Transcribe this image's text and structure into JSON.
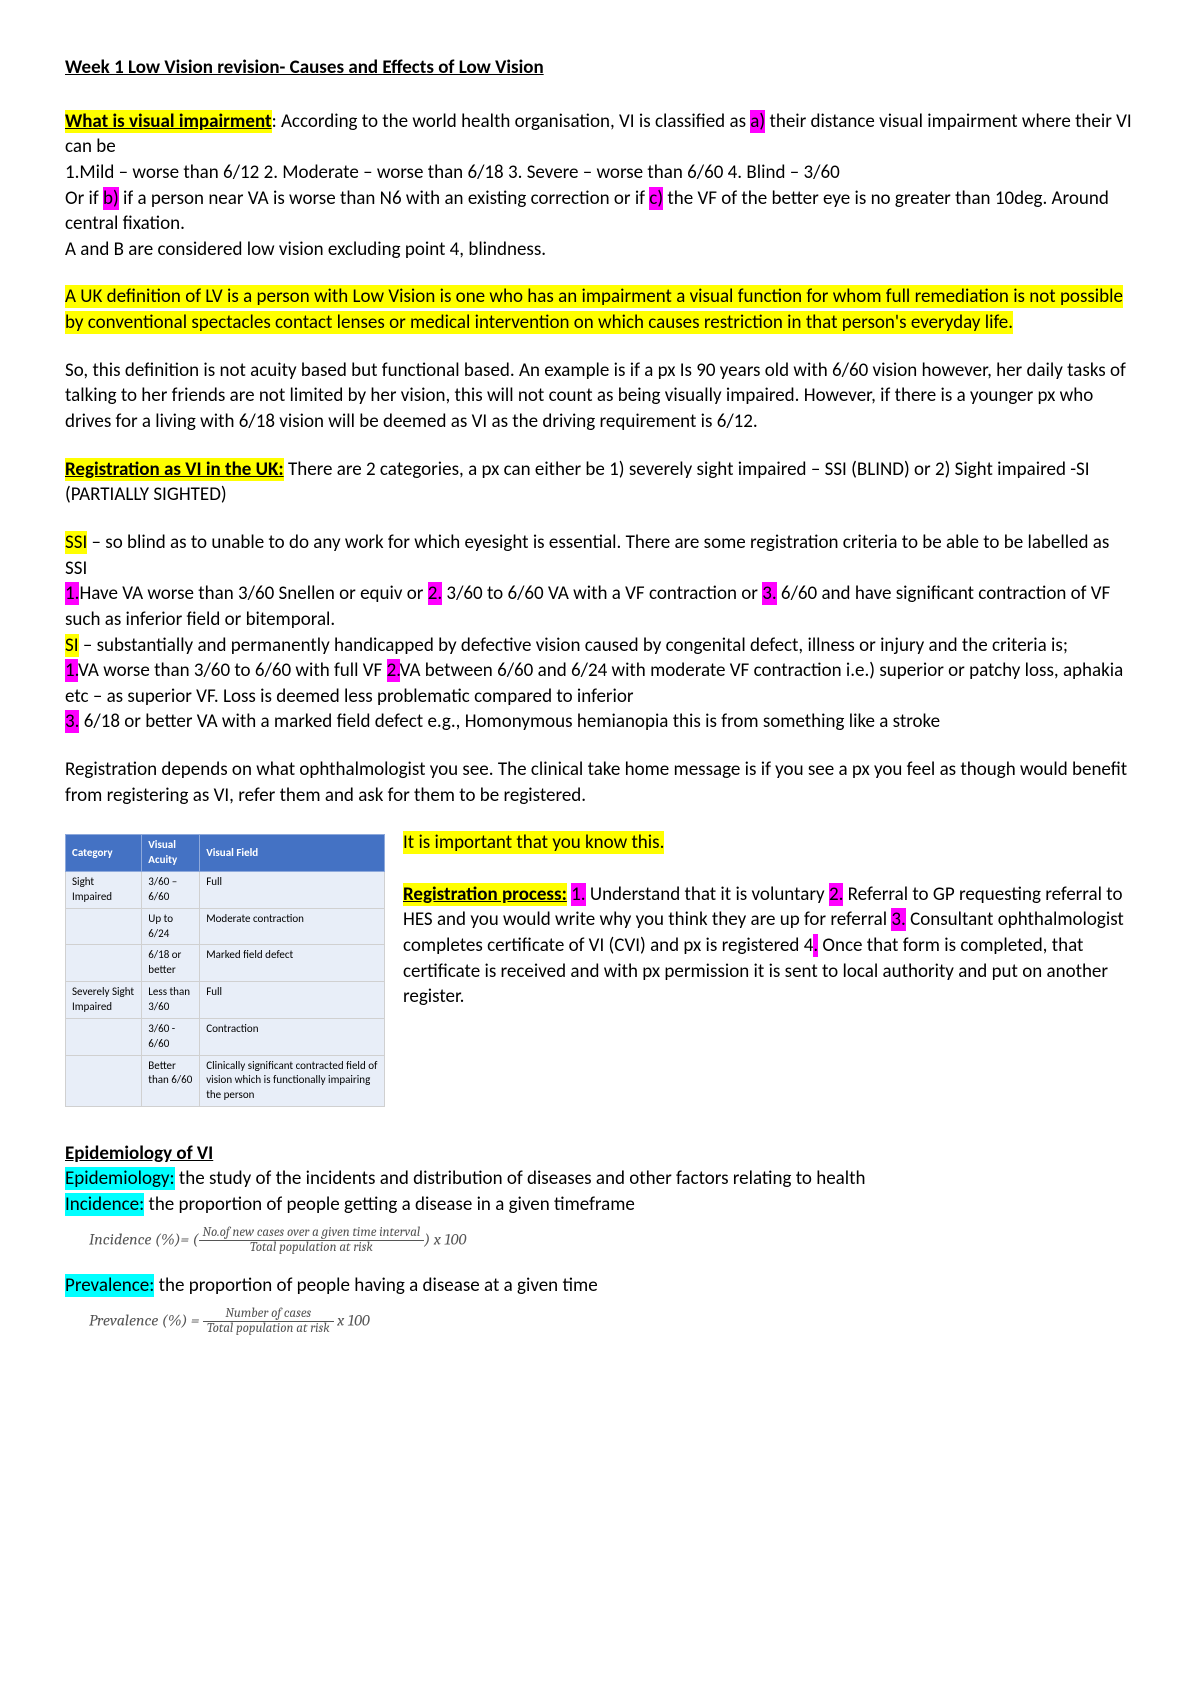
{
  "title": "Week 1 Low Vision revision- Causes and Effects of Low Vision",
  "s1": {
    "heading": "What is visual impairment",
    "t1": ": According to the world health organisation, VI is classified as ",
    "a": "a)",
    "t2": " their distance visual impairment where their VI can be",
    "line2": "1.Mild – worse than 6/12     2. Moderate – worse than 6/18    3. Severe – worse than 6/60   4. Blind – 3/60",
    "t3": "Or if ",
    "b": "b)",
    "t4": " if a person near VA is worse than N6 with an existing correction or if ",
    "c": "c)",
    "t5": " the VF of the better eye is no greater than 10deg. Around central fixation.",
    "line4": "A and B are considered low vision excluding point 4, blindness."
  },
  "s2": {
    "lead": "A UK definition of LV is",
    "body": " a person with Low Vision is one who has an impairment a visual function for whom full remediation is not possible by conventional spectacles contact lenses or medical intervention on which causes restriction in that person's everyday life."
  },
  "s3": "So, this definition is not acuity based but functional based. An example is if a px Is 90 years old with 6/60 vision however, her daily tasks of talking to her friends are not limited by her vision, this will not count as being visually impaired. However, if there is a younger px who drives for a living with 6/18 vision will be deemed as VI as the driving requirement is 6/12.",
  "s4": {
    "heading": "Registration as VI in the UK:",
    "body": " There are 2 categories, a px can either be 1) severely sight impaired – SSI (BLIND) or 2) Sight impaired -SI (PARTIALLY SIGHTED)"
  },
  "s5": {
    "ssi": "SSI",
    "ssi_t": " – so blind as to unable to do any work for which eyesight is essential. There are some registration criteria to be able to be labelled as SSI",
    "n1": "1.",
    "t1": "Have VA worse than 3/60 Snellen or equiv   or ",
    "n2": "2.",
    "t2": " 3/60 to 6/60 VA with a VF contraction or ",
    "n3": "3.",
    "t3": " 6/60 and have significant contraction of VF such as inferior field or bitemporal.",
    "si": "SI",
    "si_t": " – substantially and permanently handicapped by defective vision caused by congenital defect, illness or injury and the criteria is;",
    "sn1": "1.",
    "st1": "VA worse than 3/60 to 6/60 with full VF ",
    "sn2": "2.",
    "st2": "VA between 6/60 and 6/24 with moderate VF contraction i.e.) superior or patchy loss, aphakia etc – as superior VF. Loss is deemed less problematic compared to inferior ",
    "sn3": "3.",
    "st3": " 6/18 or better VA with a marked field defect e.g., Homonymous hemianopia this is from something like a stroke"
  },
  "s6": {
    "p1": "Registration depends on what ophthalmologist you see. The clinical take home message is if you see a px you feel as though would benefit from registering as VI, refer them and ask for them to be registered. ",
    "imp": "It is important that you know this."
  },
  "table": {
    "headers": [
      "Category",
      "Visual Acuity",
      "Visual Field"
    ],
    "rows": [
      [
        "Sight Impaired",
        "3/60 – 6/60",
        "Full"
      ],
      [
        "",
        "Up to 6/24",
        "Moderate contraction"
      ],
      [
        "",
        "6/18 or better",
        "Marked field defect"
      ],
      [
        "Severely Sight Impaired",
        "Less than 3/60",
        "Full"
      ],
      [
        "",
        "3/60 - 6/60",
        "Contraction"
      ],
      [
        "",
        "Better than 6/60",
        "Clinically significant contracted field of vision which is functionally impairing the person"
      ]
    ]
  },
  "s7": {
    "heading": "Registration process:",
    "n1": "1.",
    "t1": " Understand that it is voluntary ",
    "n2": "2.",
    "t2": " Referral to GP requesting referral to HES and you would write why you think they are up for referral  ",
    "n3": "3.",
    "t3": " Consultant ophthalmologist completes certificate of VI (CVI) and px is registered 4",
    "n4": ".",
    "t4": " Once that form is completed, that certificate is received and with px permission it is sent to local authority and put on another register."
  },
  "epi": {
    "heading": "Epidemiology of VI",
    "e_label": "Epidemiology:",
    "e_body": " the study of the incidents and distribution of diseases and other factors relating to health",
    "i_label": "Incidence:",
    "i_body": " the proportion of people getting a disease in a given timeframe",
    "inc_formula_lhs": "Incidence (%)= (",
    "inc_num": "No.of new cases over a given time interval",
    "inc_den": "Total population at risk",
    "inc_formula_rhs": ") x 100",
    "p_label": "Prevalence:",
    "p_body": " the proportion of people having a disease at a given time",
    "prev_lhs": "Prevalence (%) = ",
    "prev_num": "Number of cases",
    "prev_den": "Total population at risk",
    "prev_rhs": " x 100"
  }
}
